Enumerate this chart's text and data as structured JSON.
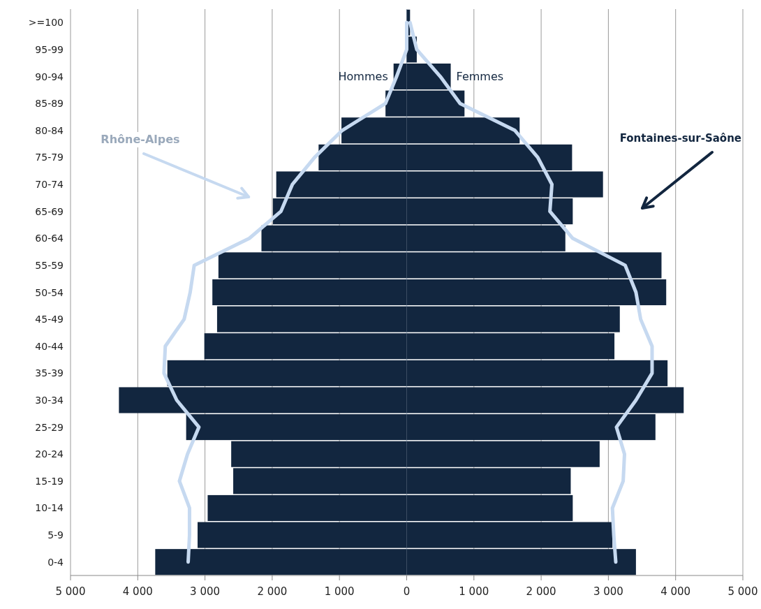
{
  "chart_data": {
    "type": "bar",
    "orientation": "horizontal",
    "stacked": true,
    "categories": [
      ">=100",
      "95-99",
      "90-94",
      "85-89",
      "80-84",
      "75-79",
      "70-74",
      "65-69",
      "60-64",
      "55-59",
      "50-54",
      "45-49",
      "40-44",
      "35-39",
      "30-34",
      "25-29",
      "20-24",
      "15-19",
      "10-14",
      "5-9",
      "0-4"
    ],
    "series": [
      {
        "name": "Hommes",
        "color": "#12263f",
        "values": [
          null,
          null,
          -195,
          -315,
          -970,
          -1310,
          -1940,
          -1990,
          -2160,
          -2800,
          -2890,
          -2820,
          -3010,
          -3560,
          -4280,
          -3280,
          -2610,
          -2580,
          -2960,
          -3110,
          -3740
        ]
      },
      {
        "name": "Femmes",
        "color": "#12263f",
        "values": [
          50,
          150,
          655,
          860,
          1680,
          2460,
          2920,
          2470,
          2360,
          3790,
          3860,
          3170,
          3090,
          3880,
          4120,
          3700,
          2870,
          2440,
          2470,
          3060,
          3410
        ]
      },
      {
        "name": "Rhône-Alpes",
        "type": "line",
        "color": "#c6d9f0",
        "values": [
          0,
          0,
          -150,
          -315,
          -960,
          -1370,
          -1700,
          -1870,
          -2340,
          -3160,
          -3220,
          -3310,
          -3590,
          -3610,
          -3420,
          -3090,
          -3260,
          -3380,
          -3230,
          -3230,
          -3250
        ]
      },
      {
        "type": "line",
        "color": "#c6d9f0",
        "values": [
          50,
          150,
          500,
          795,
          1610,
          1950,
          2160,
          2130,
          2470,
          3250,
          3410,
          3480,
          3650,
          3650,
          3410,
          3120,
          3240,
          3220,
          3060,
          3080,
          3110
        ]
      }
    ],
    "annotations": [
      "Fontaines-sur-Saône"
    ],
    "xlim": [
      -5000,
      5000
    ],
    "xticks": [
      {
        "value": -5000,
        "label": "5 000"
      },
      {
        "value": -4000,
        "label": "4 000"
      },
      {
        "value": -3000,
        "label": "3 000"
      },
      {
        "value": -2000,
        "label": "2 000"
      },
      {
        "value": -1000,
        "label": "1 000"
      },
      0,
      {
        "value": 1000,
        "label": "1 000"
      },
      {
        "value": 2000,
        "label": "2 000"
      },
      {
        "value": 3000,
        "label": "3 000"
      },
      {
        "value": 4000,
        "label": "4 000"
      },
      {
        "value": 5000,
        "label": "5 000"
      }
    ],
    "grid": "x"
  }
}
